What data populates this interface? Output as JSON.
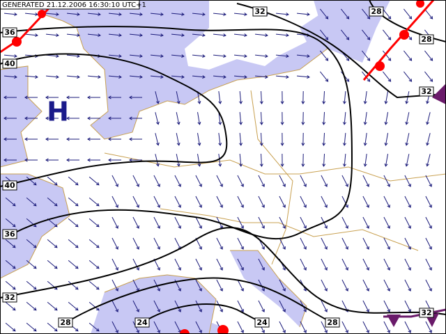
{
  "header": {
    "generated": "GENERATED 21.12.2006 16:30:10 UTC+1"
  },
  "pressure_centre": {
    "label": "H"
  },
  "isolines": [
    {
      "label": 32
    },
    {
      "label": 28
    },
    {
      "label": 28
    },
    {
      "label": 32
    },
    {
      "label": 36
    },
    {
      "label": 40
    },
    {
      "label": 40
    },
    {
      "label": 36
    },
    {
      "label": 32
    },
    {
      "label": 28
    },
    {
      "label": 24
    },
    {
      "label": 24
    },
    {
      "label": 28
    },
    {
      "label": 32
    }
  ]
}
